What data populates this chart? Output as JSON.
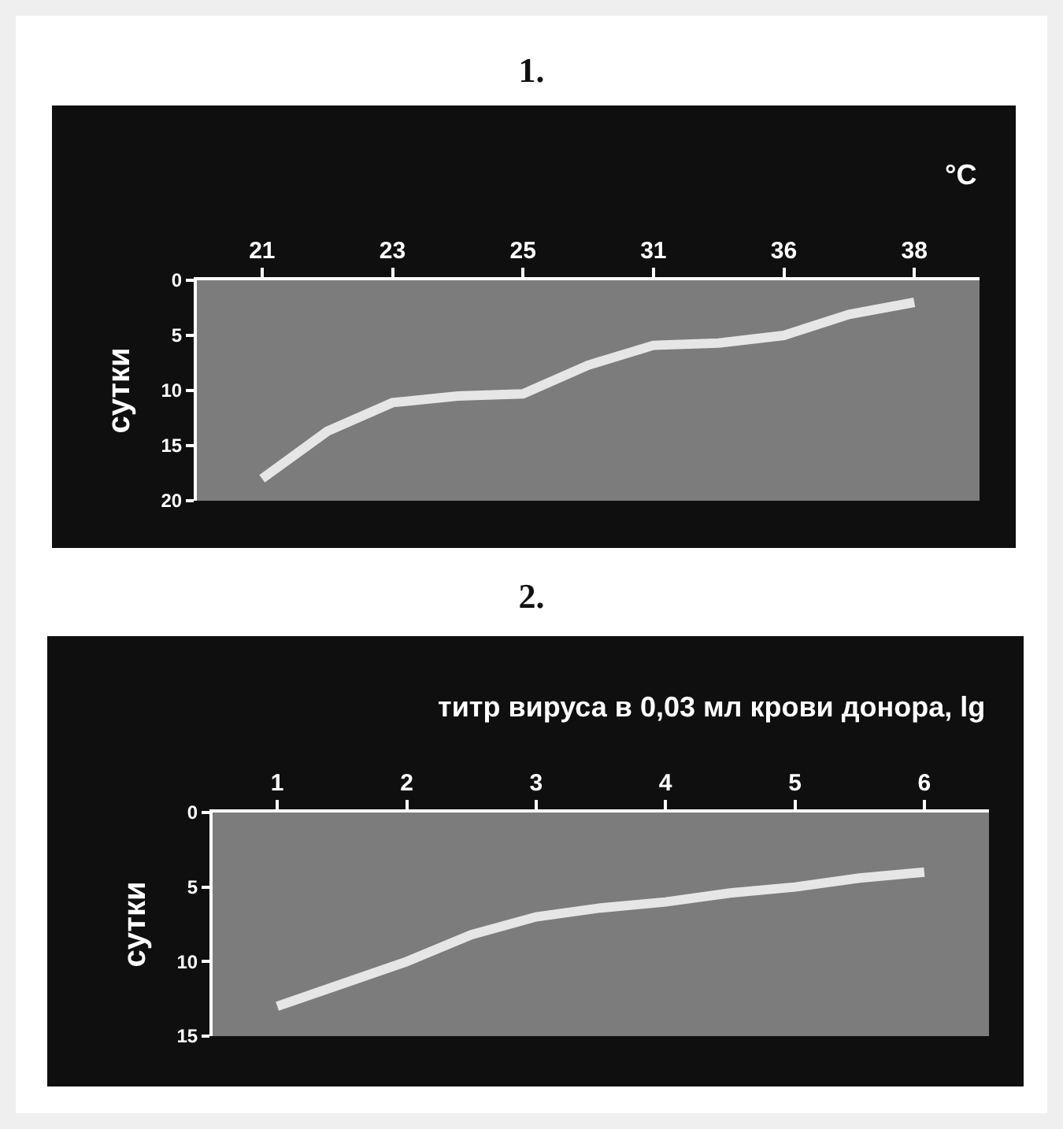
{
  "chart_data": [
    {
      "type": "line",
      "title": "1.",
      "xlabel": "°C",
      "ylabel": "сутки",
      "categories": [
        "21",
        null,
        "23",
        null,
        "25",
        null,
        "31",
        null,
        "36",
        null,
        "38"
      ],
      "series": [
        {
          "color": "#e6e6e6",
          "values": [
            18,
            13.7,
            11.1,
            10.5,
            10.3,
            7.7,
            5.9,
            5.7,
            5,
            3.1,
            2
          ]
        }
      ],
      "ylim": [
        20,
        0
      ],
      "yticks": [
        0,
        5,
        10,
        15,
        20
      ],
      "grid": false
    },
    {
      "type": "line",
      "title": "2.",
      "xlabel": "титр вируса в 0,03 мл крови донора, lg",
      "ylabel": "сутки",
      "x": [
        1,
        1.5,
        2,
        2.5,
        3,
        3.5,
        4,
        4.5,
        5,
        5.5,
        6
      ],
      "series": [
        {
          "color": "#e6e6e6",
          "values": [
            13,
            11.5,
            10,
            8.2,
            7,
            6.4,
            6,
            5.4,
            5,
            4.4,
            4
          ]
        }
      ],
      "xlim": [
        0.5,
        6.5
      ],
      "xticks": [
        1,
        2,
        3,
        4,
        5,
        6
      ],
      "ylim": [
        15,
        0
      ],
      "yticks": [
        0,
        5,
        10,
        15
      ],
      "grid": false
    }
  ]
}
